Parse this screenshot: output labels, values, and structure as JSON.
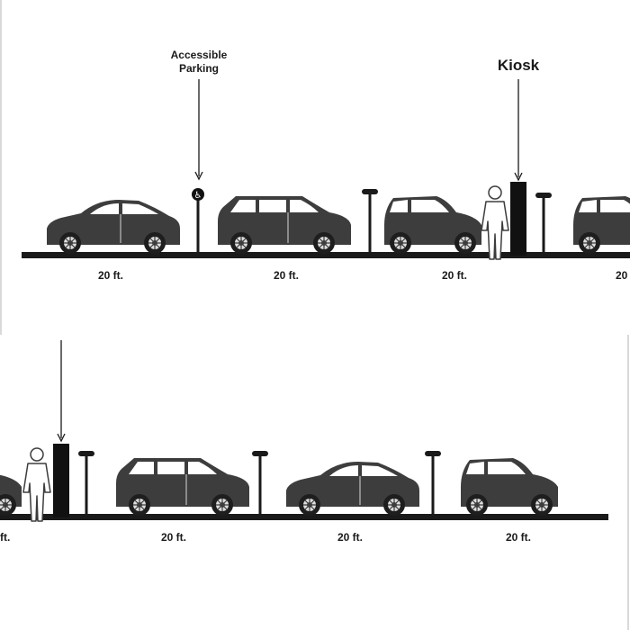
{
  "labels": {
    "accessible_line1": "Accessible",
    "accessible_line2": "Parking",
    "kiosk": "Kiosk",
    "accessible_symbol": "♿"
  },
  "top_row": {
    "spaces": [
      "20 ft.",
      "20 ft.",
      "20 ft.",
      "20"
    ]
  },
  "bottom_row": {
    "spaces": [
      "ft.",
      "20 ft.",
      "20 ft.",
      "20 ft."
    ]
  },
  "colors": {
    "ink": "#3d3d3d",
    "dark": "#1a1a1a",
    "background": "#ffffff",
    "divider": "#d9d9d9"
  },
  "icons": [
    "car-icon",
    "suv-icon",
    "hatchback-icon",
    "person-icon",
    "kiosk-icon",
    "parking-post-icon",
    "accessible-sign-icon"
  ]
}
